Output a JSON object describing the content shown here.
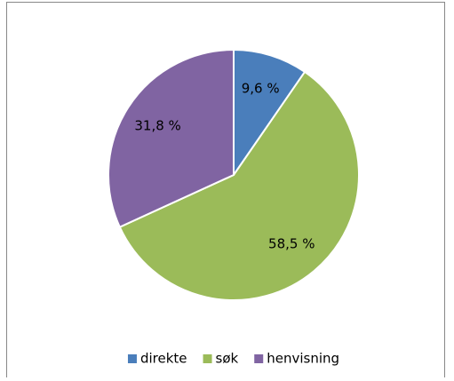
{
  "chart_data": {
    "type": "pie",
    "categories": [
      "direkte",
      "søk",
      "henvisning"
    ],
    "values": [
      9.6,
      58.5,
      31.8
    ],
    "value_labels": [
      "9,6 %",
      "58,5 %",
      "31,8 %"
    ],
    "colors": [
      "#4a7ebb",
      "#9bbb59",
      "#8064a2"
    ],
    "legend": "bottom"
  }
}
